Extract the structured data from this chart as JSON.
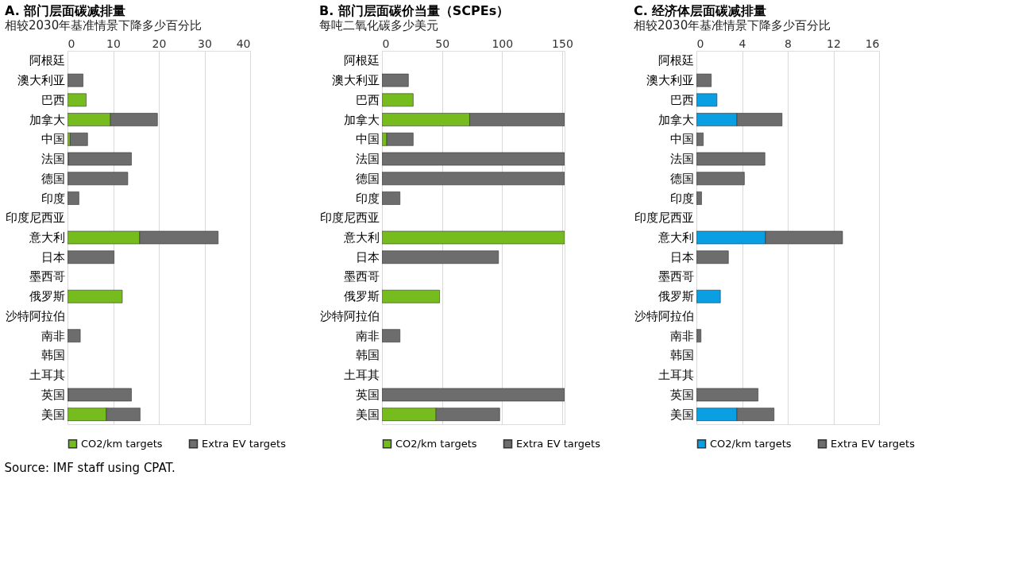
{
  "chart_data": [
    {
      "type": "bar",
      "orientation": "horizontal",
      "stacked": true,
      "title": "A. 部门层面碳减排量",
      "subtitle": "相较2030年基准情景下降多少百分比",
      "categories": [
        "阿根廷",
        "澳大利亚",
        "巴西",
        "加拿大",
        "中国",
        "法国",
        "德国",
        "印度",
        "印度尼西亚",
        "意大利",
        "日本",
        "墨西哥",
        "俄罗斯",
        "沙特阿拉伯",
        "南非",
        "韩国",
        "土耳其",
        "英国",
        "美国"
      ],
      "series": [
        {
          "name": "CO2/km targets",
          "color": "#77bc1f",
          "values": [
            null,
            null,
            4.1,
            9.4,
            0.6,
            0.2,
            null,
            null,
            null,
            15.8,
            null,
            null,
            12.0,
            null,
            null,
            null,
            null,
            0.2,
            8.5
          ]
        },
        {
          "name": "Extra EV targets",
          "color": "#6d6d6d",
          "values": [
            null,
            3.4,
            null,
            10.3,
            3.8,
            13.8,
            13.2,
            2.5,
            null,
            17.2,
            10.2,
            null,
            null,
            null,
            2.8,
            null,
            null,
            13.8,
            7.4
          ]
        }
      ],
      "xlim": [
        0,
        40
      ],
      "xticks": [
        0,
        10,
        20,
        30,
        40
      ],
      "grid": "x",
      "legend": "bottom",
      "annotations": [
        "Source: IMF staff using CPAT."
      ]
    },
    {
      "type": "bar",
      "orientation": "horizontal",
      "stacked": true,
      "title": "B. 部门层面碳价当量（SCPEs）",
      "subtitle": "每吨二氧化碳多少美元",
      "categories": [
        "阿根廷",
        "澳大利亚",
        "巴西",
        "加拿大",
        "中国",
        "法国",
        "德国",
        "印度",
        "印度尼西亚",
        "意大利",
        "日本",
        "墨西哥",
        "俄罗斯",
        "沙特阿拉伯",
        "南非",
        "韩国",
        "土耳其",
        "英国",
        "美国"
      ],
      "series": [
        {
          "name": "CO2/km targets",
          "color": "#77bc1f",
          "values": [
            null,
            null,
            26,
            73,
            4,
            null,
            null,
            null,
            null,
            152,
            null,
            null,
            48,
            null,
            null,
            null,
            null,
            null,
            45
          ]
        },
        {
          "name": "Extra EV targets",
          "color": "#6d6d6d",
          "values": [
            null,
            22,
            null,
            79,
            22,
            152,
            152,
            15,
            null,
            null,
            97,
            null,
            null,
            null,
            15,
            null,
            null,
            152,
            53
          ]
        }
      ],
      "xlim": [
        0,
        152
      ],
      "xticks": [
        0,
        50,
        100,
        150
      ],
      "grid": "x",
      "legend": "bottom"
    },
    {
      "type": "bar",
      "orientation": "horizontal",
      "stacked": true,
      "title": "C. 经济体层面碳减排量",
      "subtitle": "相较2030年基准情景下降多少百分比",
      "categories": [
        "阿根廷",
        "澳大利亚",
        "巴西",
        "加拿大",
        "中国",
        "法国",
        "德国",
        "印度",
        "印度尼西亚",
        "意大利",
        "日本",
        "墨西哥",
        "俄罗斯",
        "沙特阿拉伯",
        "南非",
        "韩国",
        "土耳其",
        "英国",
        "美国"
      ],
      "series": [
        {
          "name": "CO2/km targets",
          "color": "#0a9ee2",
          "values": [
            null,
            null,
            1.8,
            3.55,
            null,
            null,
            null,
            null,
            null,
            6.05,
            null,
            null,
            2.1,
            null,
            null,
            null,
            null,
            null,
            3.55
          ]
        },
        {
          "name": "Extra EV targets",
          "color": "#6d6d6d",
          "values": [
            null,
            1.3,
            null,
            3.95,
            0.6,
            6.0,
            4.2,
            0.45,
            null,
            6.75,
            2.8,
            null,
            null,
            null,
            0.4,
            null,
            null,
            5.4,
            3.25
          ]
        }
      ],
      "xlim": [
        0,
        16
      ],
      "xticks": [
        0,
        4,
        8,
        12,
        16
      ],
      "grid": "x",
      "legend": "bottom"
    }
  ]
}
